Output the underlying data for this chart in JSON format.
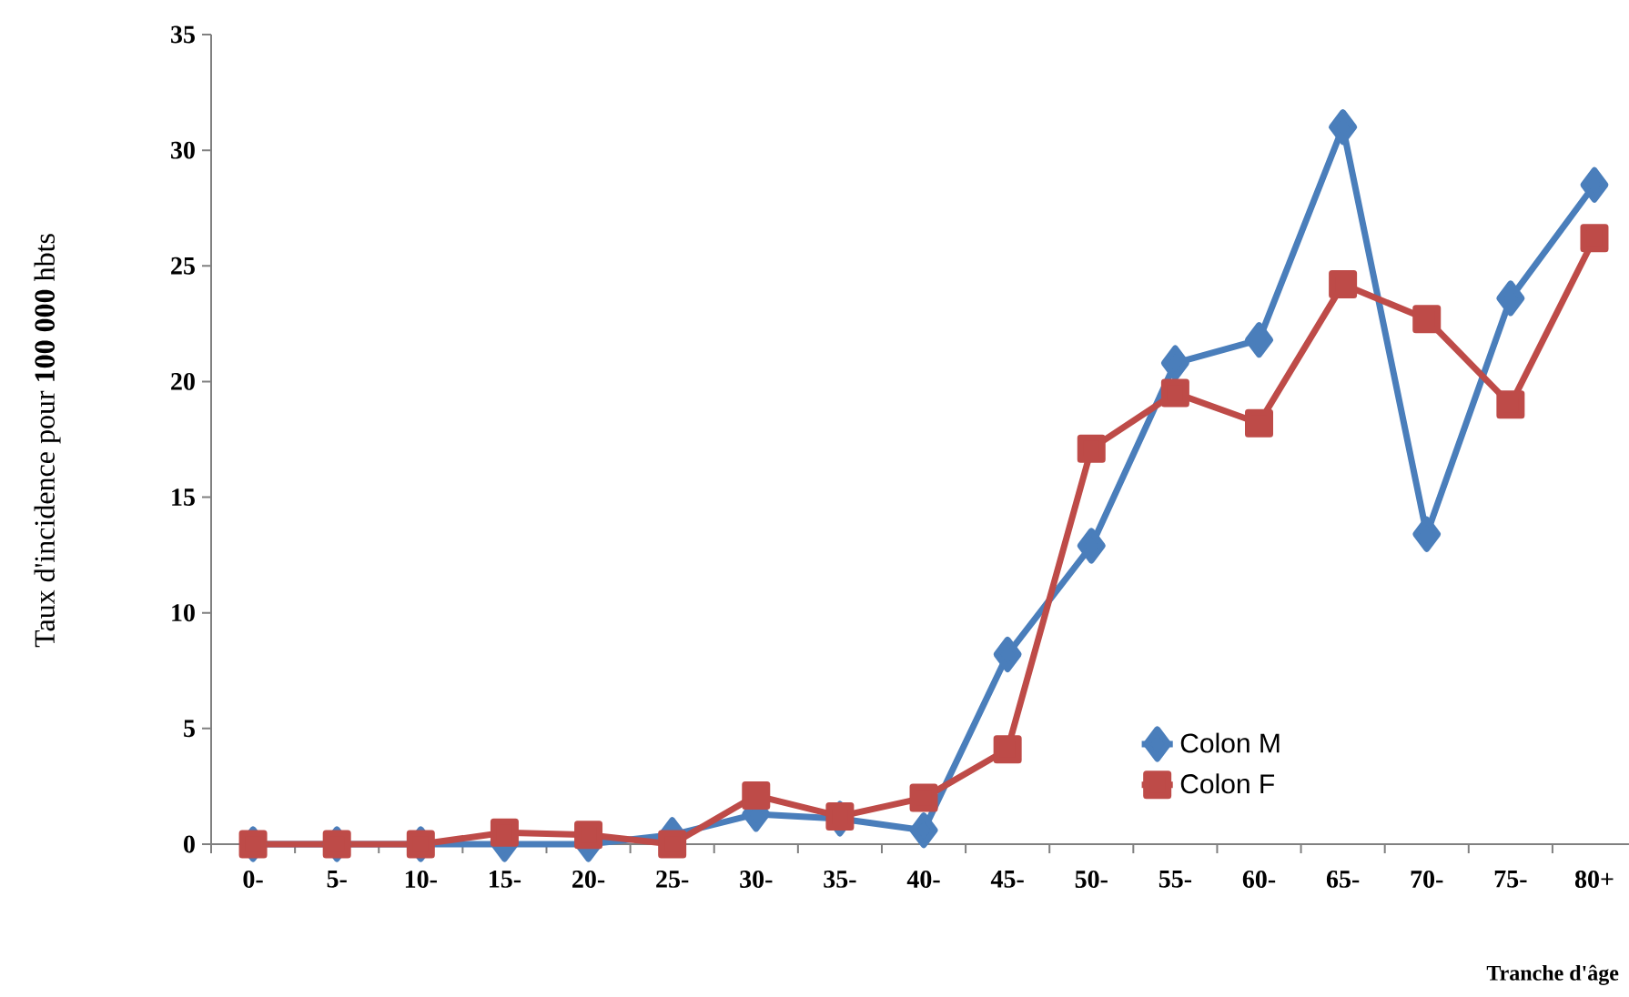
{
  "chart_data": {
    "type": "line",
    "xlabel": "Tranche d'âge",
    "ylabel": "Taux  d'incidence pour **100 000** hbts",
    "categories": [
      "0-",
      "5-",
      "10-",
      "15-",
      "20-",
      "25-",
      "30-",
      "35-",
      "40-",
      "45-",
      "50-",
      "55-",
      "60-",
      "65-",
      "70-",
      "75-",
      "80+"
    ],
    "series": [
      {
        "name": "Colon M",
        "color": "#4a7ebb",
        "marker": "diamond",
        "values": [
          0,
          0,
          0,
          0,
          0,
          0.4,
          1.3,
          1.1,
          0.6,
          8.2,
          12.9,
          20.8,
          21.8,
          31.0,
          13.4,
          23.6,
          28.5
        ]
      },
      {
        "name": "Colon F",
        "color": "#be4b48",
        "marker": "square",
        "values": [
          0,
          0,
          0,
          0.5,
          0.4,
          0,
          2.1,
          1.2,
          2.0,
          4.1,
          17.1,
          19.5,
          18.2,
          24.2,
          22.7,
          19.0,
          26.2
        ]
      }
    ],
    "ylim": [
      0,
      35
    ],
    "yticks": [
      0,
      5,
      10,
      15,
      20,
      25,
      30,
      35
    ],
    "grid": false,
    "legend": "bottom right"
  }
}
